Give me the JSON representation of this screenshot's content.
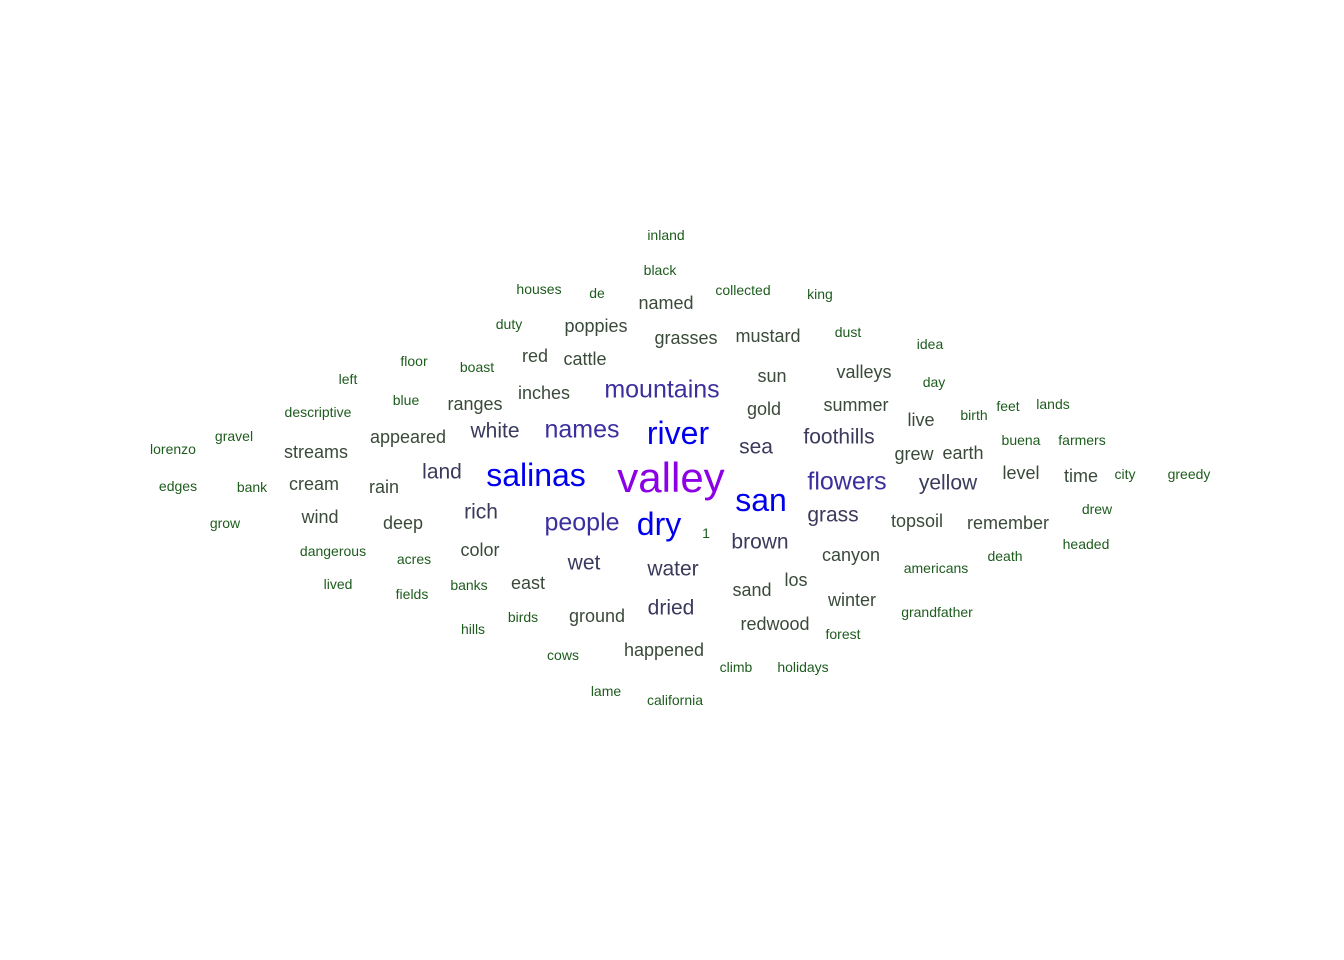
{
  "palette": {
    "level1": "#8b00e6",
    "level2": "#0000ee",
    "level3": "#3b2f9e",
    "level4": "#3a3a5c",
    "level5": "#3a4a3a",
    "level6": "#1e5c1e"
  },
  "words": [
    {
      "text": "valley",
      "level": 1
    },
    {
      "text": "river",
      "level": 2
    },
    {
      "text": "salinas",
      "level": 2
    },
    {
      "text": "dry",
      "level": 2
    },
    {
      "text": "san",
      "level": 2
    },
    {
      "text": "mountains",
      "level": 3
    },
    {
      "text": "names",
      "level": 3
    },
    {
      "text": "people",
      "level": 3
    },
    {
      "text": "flowers",
      "level": 3
    },
    {
      "text": "water",
      "level": 4
    },
    {
      "text": "white",
      "level": 4
    },
    {
      "text": "sea",
      "level": 4
    },
    {
      "text": "foothills",
      "level": 4
    },
    {
      "text": "yellow",
      "level": 4
    },
    {
      "text": "land",
      "level": 4
    },
    {
      "text": "rich",
      "level": 4
    },
    {
      "text": "brown",
      "level": 4
    },
    {
      "text": "wet",
      "level": 4
    },
    {
      "text": "grass",
      "level": 4
    },
    {
      "text": "dried",
      "level": 4
    },
    {
      "text": "inches",
      "level": 5
    },
    {
      "text": "gold",
      "level": 5
    },
    {
      "text": "sun",
      "level": 5
    },
    {
      "text": "summer",
      "level": 5
    },
    {
      "text": "grasses",
      "level": 5
    },
    {
      "text": "mustard",
      "level": 5
    },
    {
      "text": "valleys",
      "level": 5
    },
    {
      "text": "ranges",
      "level": 5
    },
    {
      "text": "appeared",
      "level": 5
    },
    {
      "text": "streams",
      "level": 5
    },
    {
      "text": "rain",
      "level": 5
    },
    {
      "text": "cream",
      "level": 5
    },
    {
      "text": "wind",
      "level": 5
    },
    {
      "text": "deep",
      "level": 5
    },
    {
      "text": "color",
      "level": 5
    },
    {
      "text": "east",
      "level": 5
    },
    {
      "text": "ground",
      "level": 5
    },
    {
      "text": "sand",
      "level": 5
    },
    {
      "text": "los",
      "level": 5
    },
    {
      "text": "canyon",
      "level": 5
    },
    {
      "text": "winter",
      "level": 5
    },
    {
      "text": "redwood",
      "level": 5
    },
    {
      "text": "happened",
      "level": 5
    },
    {
      "text": "topsoil",
      "level": 5
    },
    {
      "text": "remember",
      "level": 5
    },
    {
      "text": "grew",
      "level": 5
    },
    {
      "text": "earth",
      "level": 5
    },
    {
      "text": "level",
      "level": 5
    },
    {
      "text": "time",
      "level": 5
    },
    {
      "text": "live",
      "level": 5
    },
    {
      "text": "named",
      "level": 5
    },
    {
      "text": "poppies",
      "level": 5
    },
    {
      "text": "cattle",
      "level": 5
    },
    {
      "text": "red",
      "level": 5
    },
    {
      "text": "inland",
      "level": 6
    },
    {
      "text": "black",
      "level": 6
    },
    {
      "text": "houses",
      "level": 6
    },
    {
      "text": "de",
      "level": 6
    },
    {
      "text": "collected",
      "level": 6
    },
    {
      "text": "king",
      "level": 6
    },
    {
      "text": "duty",
      "level": 6
    },
    {
      "text": "dust",
      "level": 6
    },
    {
      "text": "idea",
      "level": 6
    },
    {
      "text": "floor",
      "level": 6
    },
    {
      "text": "boast",
      "level": 6
    },
    {
      "text": "left",
      "level": 6
    },
    {
      "text": "day",
      "level": 6
    },
    {
      "text": "blue",
      "level": 6
    },
    {
      "text": "descriptive",
      "level": 6
    },
    {
      "text": "birth",
      "level": 6
    },
    {
      "text": "feet",
      "level": 6
    },
    {
      "text": "lands",
      "level": 6
    },
    {
      "text": "gravel",
      "level": 6
    },
    {
      "text": "lorenzo",
      "level": 6
    },
    {
      "text": "buena",
      "level": 6
    },
    {
      "text": "farmers",
      "level": 6
    },
    {
      "text": "edges",
      "level": 6
    },
    {
      "text": "bank",
      "level": 6
    },
    {
      "text": "city",
      "level": 6
    },
    {
      "text": "greedy",
      "level": 6
    },
    {
      "text": "grow",
      "level": 6
    },
    {
      "text": "drew",
      "level": 6
    },
    {
      "text": "1",
      "level": 6
    },
    {
      "text": "dangerous",
      "level": 6
    },
    {
      "text": "acres",
      "level": 6
    },
    {
      "text": "headed",
      "level": 6
    },
    {
      "text": "death",
      "level": 6
    },
    {
      "text": "americans",
      "level": 6
    },
    {
      "text": "lived",
      "level": 6
    },
    {
      "text": "fields",
      "level": 6
    },
    {
      "text": "banks",
      "level": 6
    },
    {
      "text": "grandfather",
      "level": 6
    },
    {
      "text": "birds",
      "level": 6
    },
    {
      "text": "hills",
      "level": 6
    },
    {
      "text": "forest",
      "level": 6
    },
    {
      "text": "cows",
      "level": 6
    },
    {
      "text": "climb",
      "level": 6
    },
    {
      "text": "holidays",
      "level": 6
    },
    {
      "text": "lame",
      "level": 6
    },
    {
      "text": "california",
      "level": 6
    }
  ]
}
